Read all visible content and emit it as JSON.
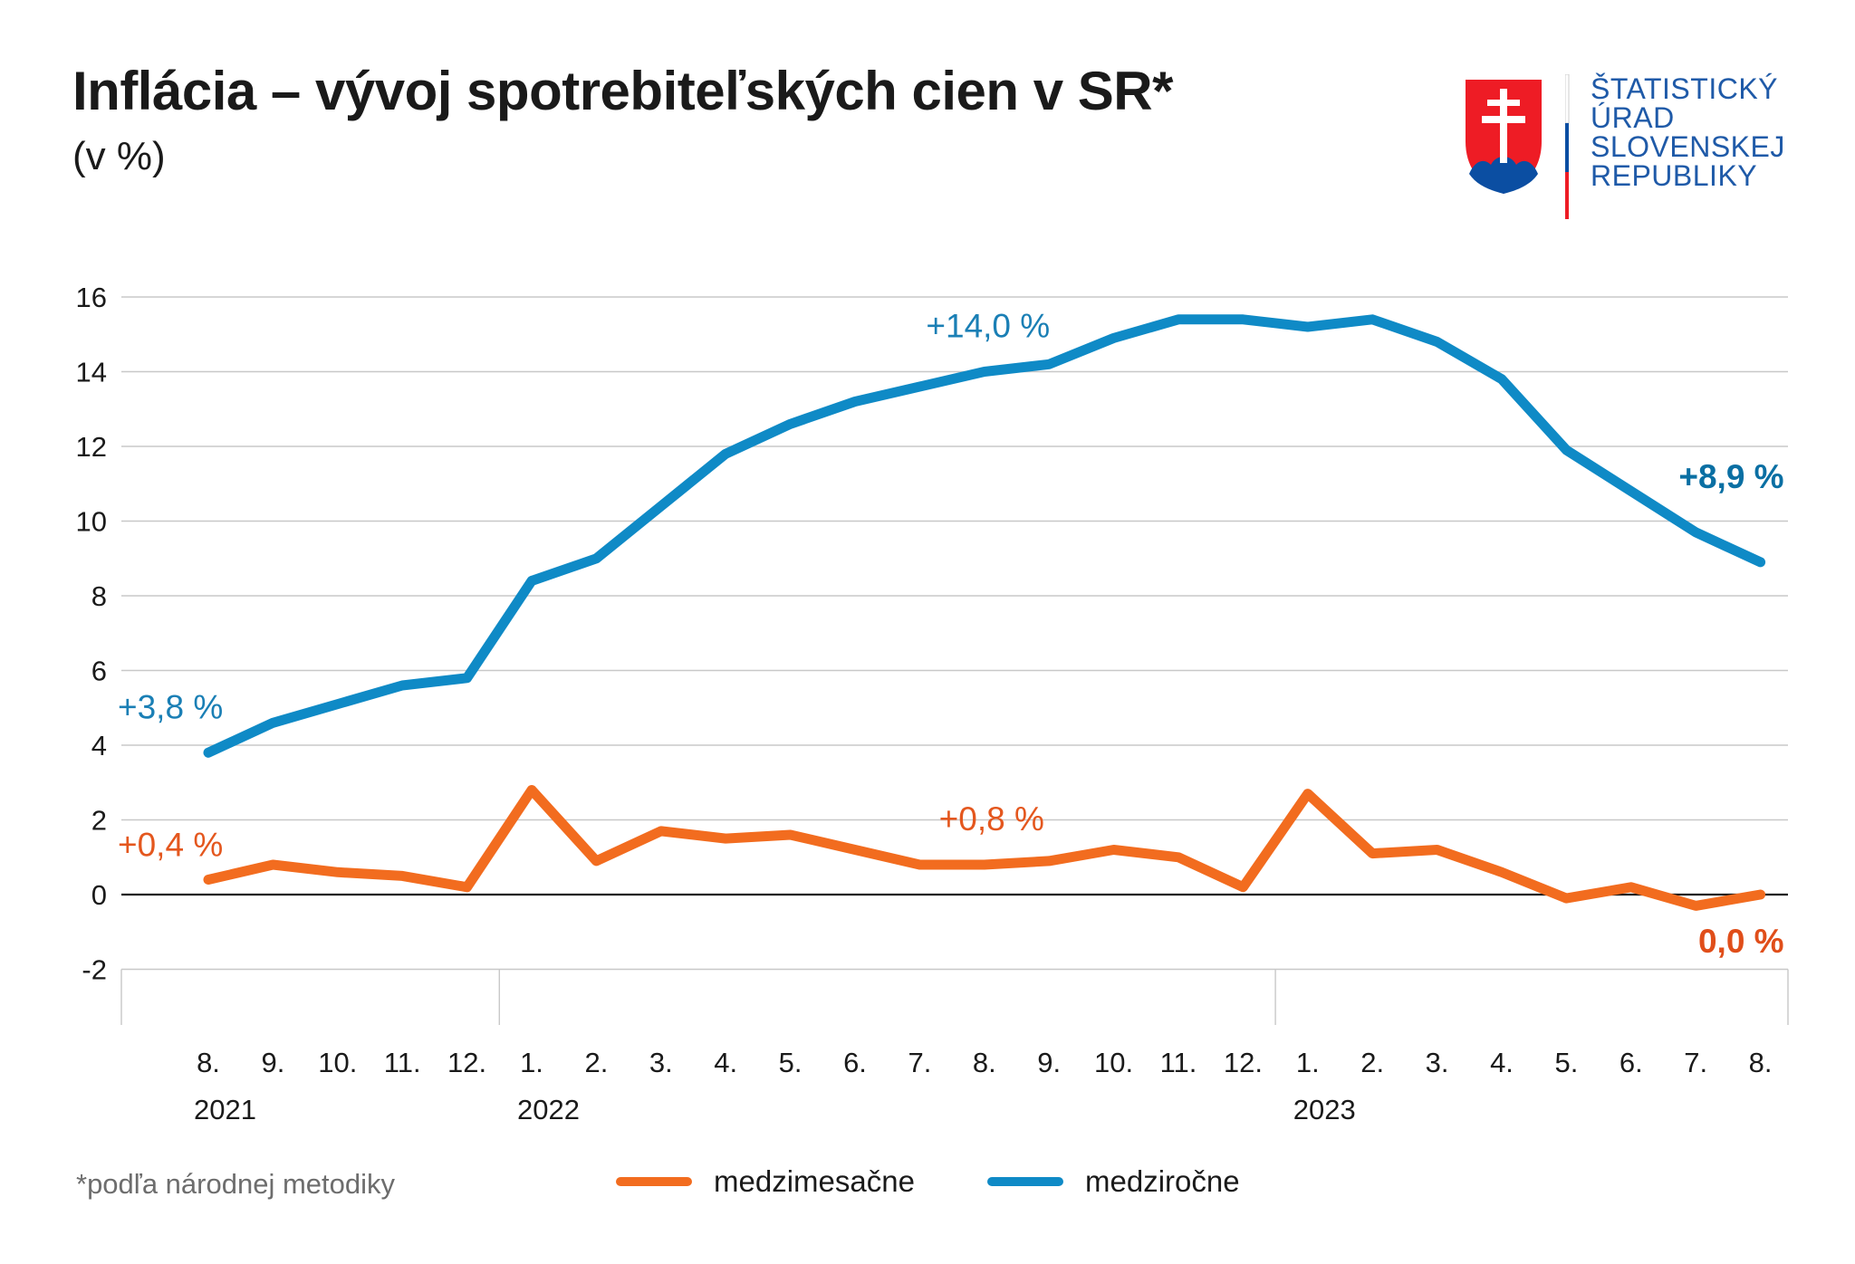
{
  "header": {
    "title": "Inflácia – vývoj spotrebiteľských cien v SR*",
    "subtitle": "(v %)"
  },
  "logo": {
    "lines": [
      "ŠTATISTICKÝ",
      "ÚRAD",
      "SLOVENSKEJ",
      "REPUBLIKY"
    ],
    "colors": {
      "red": "#ee1c25",
      "blue": "#0b4ea2",
      "white": "#ffffff",
      "text": "#1f5aa8"
    }
  },
  "chart_data": {
    "type": "line",
    "title": "Inflácia – vývoj spotrebiteľských cien v SR*",
    "subtitle": "(v %)",
    "xlabel": "",
    "ylabel": "",
    "ylim": [
      -2,
      16
    ],
    "yticks": [
      "-2",
      "0",
      "2",
      "4",
      "6",
      "8",
      "10",
      "12",
      "14",
      "16"
    ],
    "grid": true,
    "categories": [
      "8.",
      "9.",
      "10.",
      "11.",
      "12.",
      "1.",
      "2.",
      "3.",
      "4.",
      "5.",
      "6.",
      "7.",
      "8.",
      "9.",
      "10.",
      "11.",
      "12.",
      "1.",
      "2.",
      "3.",
      "4.",
      "5.",
      "6.",
      "7.",
      "8."
    ],
    "year_labels": [
      {
        "label": "2021",
        "start_index": 0
      },
      {
        "label": "2022",
        "start_index": 5
      },
      {
        "label": "2023",
        "start_index": 17
      }
    ],
    "series": [
      {
        "name": "medziročne",
        "color": "#0f8ac6",
        "values": [
          3.8,
          4.6,
          5.1,
          5.6,
          5.8,
          8.4,
          9.0,
          10.4,
          11.8,
          12.6,
          13.2,
          13.6,
          14.0,
          14.2,
          14.9,
          15.4,
          15.4,
          15.2,
          15.4,
          14.8,
          13.8,
          11.9,
          10.8,
          9.7,
          8.9
        ]
      },
      {
        "name": "medzimesačne",
        "color": "#f26c1f",
        "values": [
          0.4,
          0.8,
          0.6,
          0.5,
          0.2,
          2.8,
          0.9,
          1.7,
          1.5,
          1.6,
          1.2,
          0.8,
          0.8,
          0.9,
          1.2,
          1.0,
          0.2,
          2.7,
          1.1,
          1.2,
          0.6,
          -0.1,
          0.2,
          -0.3,
          0.0
        ]
      }
    ],
    "annotations": [
      {
        "text": "+3,8 %",
        "series": "medziročne",
        "index": 0,
        "bold": false
      },
      {
        "text": "+14,0 %",
        "series": "medziročne",
        "index": 12,
        "bold": false
      },
      {
        "text": "+8,9 %",
        "series": "medziročne",
        "index": 24,
        "bold": true
      },
      {
        "text": "+0,4 %",
        "series": "medzimesačne",
        "index": 0,
        "bold": false
      },
      {
        "text": "+0,8 %",
        "series": "medzimesačne",
        "index": 12,
        "bold": false
      },
      {
        "text": "0,0 %",
        "series": "medzimesačne",
        "index": 24,
        "bold": true
      }
    ],
    "legend": [
      {
        "label": "medzimesačne",
        "color": "#f26c1f"
      },
      {
        "label": "medziročne",
        "color": "#0f8ac6"
      }
    ],
    "legend_position": "bottom"
  },
  "footnote": "*podľa národnej metodiky"
}
